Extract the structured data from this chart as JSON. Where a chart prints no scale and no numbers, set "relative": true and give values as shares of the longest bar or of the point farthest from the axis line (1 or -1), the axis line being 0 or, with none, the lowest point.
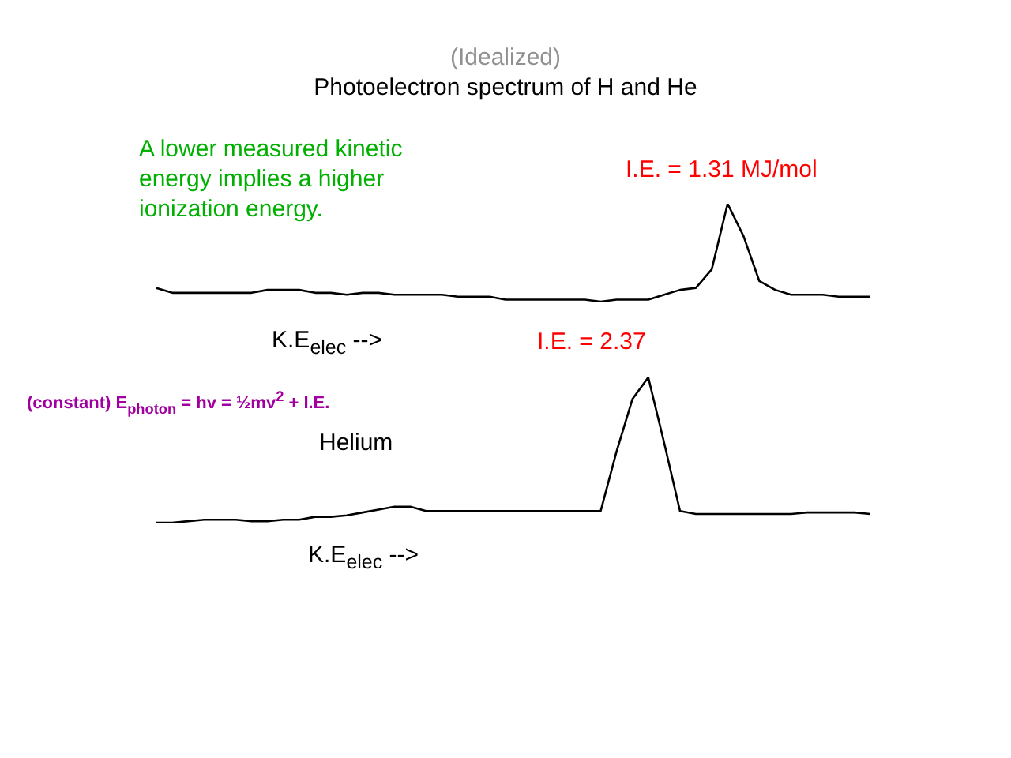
{
  "chart_data": [
    {
      "type": "line",
      "title": "Photoelectron spectrum of H and He",
      "subtitle": "(Idealized)",
      "xlabel": "K.E$_{elec}$ -->",
      "relative": true,
      "annotations": [
        "A lower measured kinetic energy implies a higher ionization energy.",
        "I.E. = 1.31 MJ/mol"
      ],
      "categories": [
        null,
        null,
        null,
        null,
        null,
        null,
        null,
        null,
        null,
        null,
        null,
        null,
        null,
        null,
        null,
        null,
        null,
        null,
        null,
        null,
        null,
        null,
        null,
        null,
        null,
        null,
        null,
        null,
        null,
        null,
        null,
        null,
        null,
        null,
        null,
        null,
        null,
        null,
        null,
        null,
        null,
        null,
        null,
        null,
        null,
        null
      ],
      "series": [
        {
          "color": "#000000",
          "values": [
            0.14,
            0.09,
            0.09,
            0.09,
            0.09,
            0.09,
            0.09,
            0.12,
            0.12,
            0.12,
            0.09,
            0.09,
            0.07,
            0.09,
            0.09,
            0.07,
            0.07,
            0.07,
            0.07,
            0.05,
            0.05,
            0.05,
            0.02,
            0.02,
            0.02,
            0.02,
            0.02,
            0.02,
            0,
            0.02,
            0.02,
            0.02,
            0.07,
            0.12,
            0.14,
            0.33,
            1,
            0.67,
            0.21,
            0.12,
            0.07,
            0.07,
            0.07,
            0.05,
            0.05,
            0.05
          ]
        }
      ]
    },
    {
      "type": "line",
      "title": "Helium",
      "xlabel": "K.E$_{elec}$ -->",
      "relative": true,
      "annotations": [
        "I.E. = 2.37",
        "(constant) E$_{photon}$ = hv  =  ½mv$^{2}$  +   I.E."
      ],
      "categories": [
        null,
        null,
        null,
        null,
        null,
        null,
        null,
        null,
        null,
        null,
        null,
        null,
        null,
        null,
        null,
        null,
        null,
        null,
        null,
        null,
        null,
        null,
        null,
        null,
        null,
        null,
        null,
        null,
        null,
        null,
        null,
        null,
        null,
        null,
        null,
        null,
        null,
        null,
        null,
        null,
        null,
        null,
        null,
        null,
        null,
        null
      ],
      "series": [
        {
          "color": "#000000",
          "values": [
            0,
            0,
            0.01,
            0.02,
            0.02,
            0.02,
            0.01,
            0.01,
            0.02,
            0.02,
            0.04,
            0.04,
            0.05,
            0.07,
            0.09,
            0.11,
            0.11,
            0.08,
            0.08,
            0.08,
            0.08,
            0.08,
            0.08,
            0.08,
            0.08,
            0.08,
            0.08,
            0.08,
            0.08,
            0.49,
            0.85,
            1,
            0.55,
            0.08,
            0.06,
            0.06,
            0.06,
            0.06,
            0.06,
            0.06,
            0.06,
            0.07,
            0.07,
            0.07,
            0.07,
            0.06
          ]
        }
      ]
    }
  ]
}
